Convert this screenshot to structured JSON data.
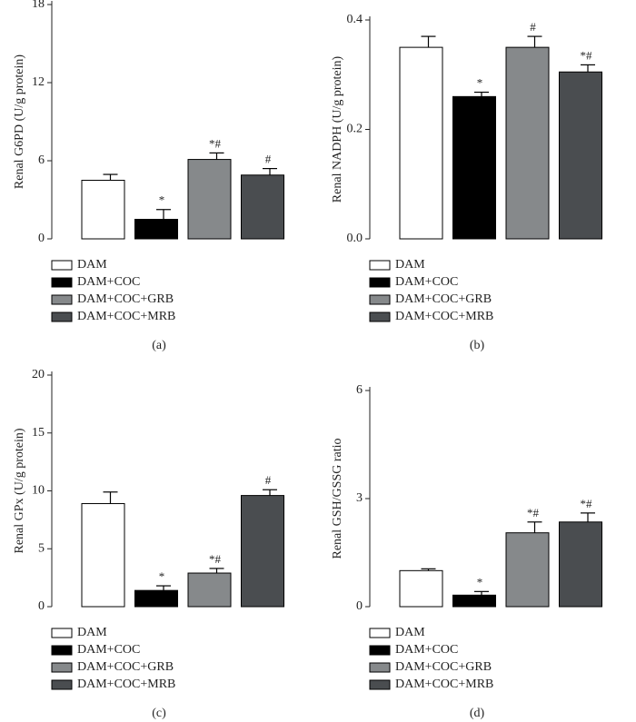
{
  "chart_data": [
    {
      "type": "bar",
      "ylabel": "Renal G6PD (U/g protein)",
      "panel_label": "(a)",
      "categories": [
        "DAM",
        "DAM+COC",
        "DAM+COC+GRB",
        "DAM+COC+MRB"
      ],
      "colors": [
        "#ffffff",
        "#000000",
        "#86898b",
        "#4a4d50"
      ],
      "values": [
        4.5,
        1.5,
        6.1,
        4.9
      ],
      "errors": [
        0.45,
        0.75,
        0.5,
        0.5
      ],
      "annotations": [
        null,
        "*",
        "*#",
        "#"
      ],
      "ylim": [
        0,
        18
      ],
      "yticks": [
        0,
        6,
        12,
        18
      ]
    },
    {
      "type": "bar",
      "ylabel": "Renal NADPH (U/g protein)",
      "panel_label": "(b)",
      "categories": [
        "DAM",
        "DAM+COC",
        "DAM+COC+GRB",
        "DAM+COC+MRB"
      ],
      "colors": [
        "#ffffff",
        "#000000",
        "#86898b",
        "#4a4d50"
      ],
      "values": [
        0.35,
        0.26,
        0.35,
        0.305
      ],
      "errors": [
        0.02,
        0.008,
        0.02,
        0.013
      ],
      "annotations": [
        null,
        "*",
        "#",
        "*#"
      ],
      "ylim": [
        0,
        0.4
      ],
      "yticks": [
        {
          "value": 0,
          "label": "0.0"
        },
        {
          "value": 0.2,
          "label": "0.2"
        },
        {
          "value": 0.4,
          "label": "0.4"
        }
      ]
    },
    {
      "type": "bar",
      "ylabel": "Renal GPx (U/g protein)",
      "panel_label": "(c)",
      "categories": [
        "DAM",
        "DAM+COC",
        "DAM+COC+GRB",
        "DAM+COC+MRB"
      ],
      "colors": [
        "#ffffff",
        "#000000",
        "#86898b",
        "#4a4d50"
      ],
      "values": [
        8.9,
        1.4,
        2.9,
        9.6
      ],
      "errors": [
        1.0,
        0.4,
        0.4,
        0.5
      ],
      "annotations": [
        null,
        "*",
        "*#",
        "#"
      ],
      "ylim": [
        0,
        20
      ],
      "yticks": [
        0,
        5,
        10,
        15,
        20
      ]
    },
    {
      "type": "bar",
      "ylabel": "Renal GSH/GSSG ratio",
      "panel_label": "(d)",
      "categories": [
        "DAM",
        "DAM+COC",
        "DAM+COC+GRB",
        "DAM+COC+MRB"
      ],
      "colors": [
        "#ffffff",
        "#000000",
        "#86898b",
        "#4a4d50"
      ],
      "values": [
        1.0,
        0.32,
        2.05,
        2.35
      ],
      "errors": [
        0.05,
        0.1,
        0.3,
        0.25
      ],
      "annotations": [
        null,
        "*",
        "*#",
        "*#"
      ],
      "ylim": [
        0,
        6
      ],
      "yticks": [
        0,
        3,
        6
      ]
    }
  ]
}
